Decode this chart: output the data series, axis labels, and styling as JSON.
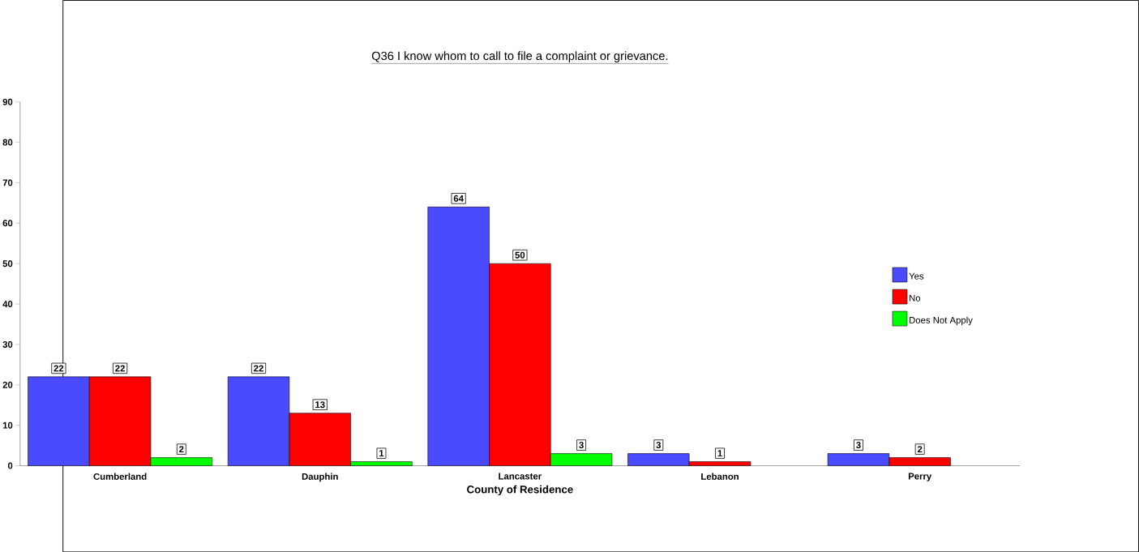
{
  "chart_data": {
    "type": "bar",
    "title": "Q36 I know whom to call to file a complaint or grievance.",
    "xlabel": "County of Residence",
    "categories": [
      "Cumberland",
      "Dauphin",
      "Lancaster",
      "Lebanon",
      "Perry"
    ],
    "series": [
      {
        "name": "Yes",
        "color": "#4a4aff",
        "values": [
          22,
          22,
          64,
          3,
          3
        ]
      },
      {
        "name": "No",
        "color": "#ff0000",
        "values": [
          22,
          13,
          50,
          1,
          2
        ]
      },
      {
        "name": "Does Not Apply",
        "color": "#00ff00",
        "values": [
          2,
          1,
          3,
          null,
          null
        ]
      }
    ],
    "ylim": [
      0,
      90
    ],
    "yticks": [
      0,
      10,
      20,
      30,
      40,
      50,
      60,
      70,
      80,
      90
    ],
    "data_labels": true,
    "legend": "right"
  }
}
